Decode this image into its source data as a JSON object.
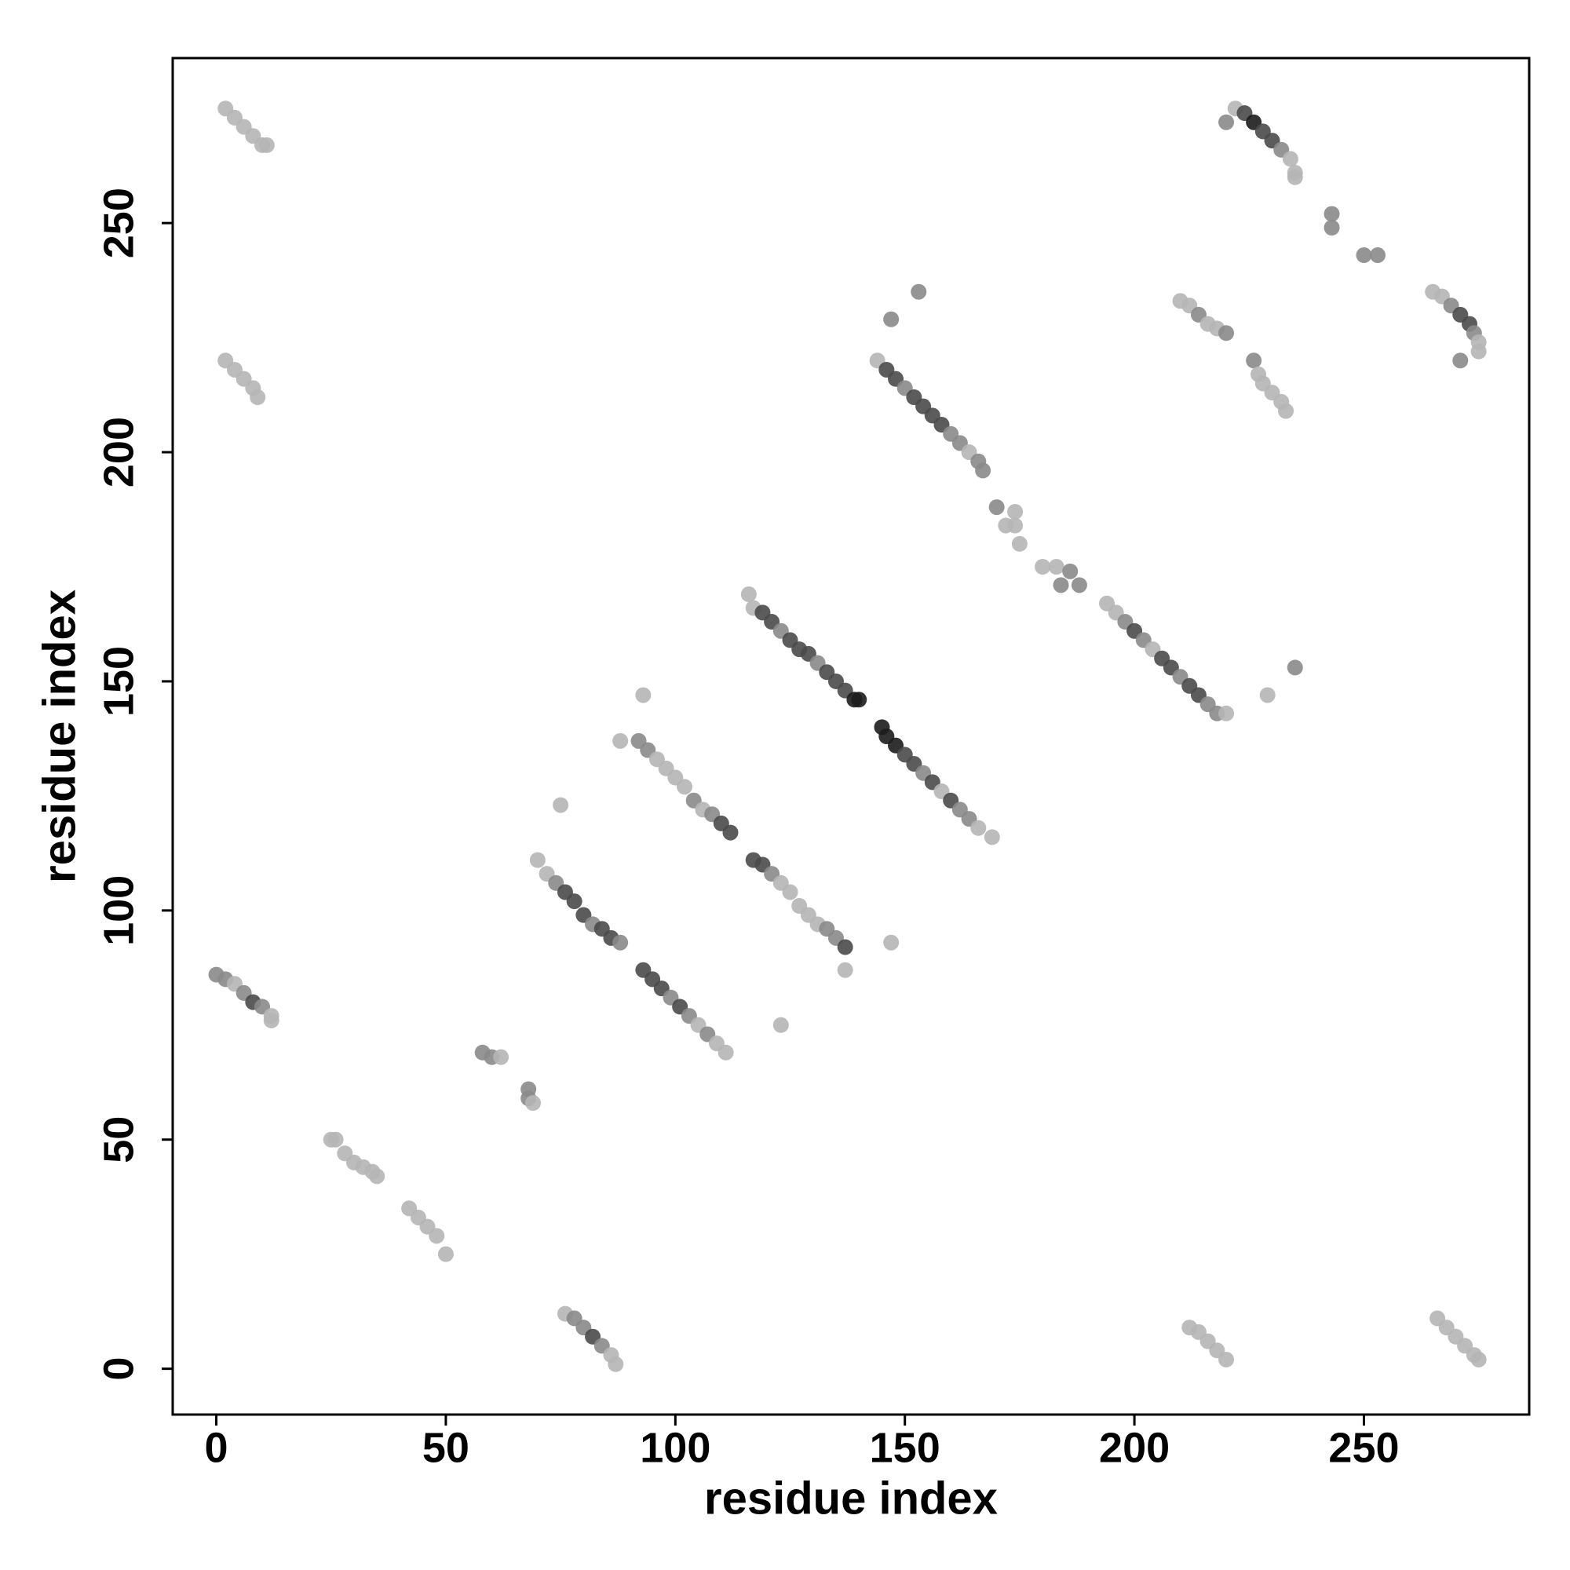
{
  "chart_data": {
    "type": "scatter",
    "x_label": "residue index",
    "y_label": "residue index",
    "xlim": [
      -9.5,
      286
    ],
    "ylim": [
      -10,
      286
    ],
    "xticks": [
      0,
      50,
      100,
      150,
      200,
      250
    ],
    "yticks": [
      0,
      50,
      100,
      150,
      200,
      250
    ],
    "x": [
      2,
      4,
      6,
      8,
      10,
      11,
      2,
      4,
      6,
      8,
      9,
      0,
      2,
      4,
      6,
      8,
      10,
      12,
      12,
      25,
      26,
      28,
      30,
      32,
      34,
      35,
      42,
      44,
      46,
      48,
      50,
      58,
      60,
      62,
      68,
      68,
      69,
      76,
      78,
      80,
      82,
      84,
      86,
      87,
      70,
      72,
      74,
      76,
      78,
      80,
      82,
      84,
      86,
      88,
      75,
      93,
      95,
      97,
      99,
      101,
      103,
      105,
      107,
      109,
      111,
      92,
      94,
      96,
      98,
      100,
      102,
      104,
      106,
      108,
      110,
      112,
      93,
      88,
      117,
      119,
      121,
      123,
      125,
      127,
      129,
      131,
      133,
      135,
      137,
      137,
      123,
      116,
      117,
      119,
      121,
      123,
      125,
      127,
      129,
      131,
      133,
      135,
      137,
      139,
      140,
      145,
      146,
      148,
      150,
      152,
      154,
      156,
      158,
      160,
      162,
      164,
      166,
      169,
      147,
      144,
      146,
      148,
      150,
      152,
      154,
      156,
      158,
      160,
      162,
      164,
      166,
      167,
      147,
      153,
      170,
      172,
      174,
      174,
      175,
      180,
      183,
      184,
      186,
      188,
      194,
      196,
      198,
      200,
      202,
      204,
      206,
      208,
      210,
      212,
      214,
      216,
      218,
      220,
      229,
      235,
      210,
      212,
      214,
      216,
      218,
      220,
      226,
      227,
      228,
      230,
      232,
      233,
      220,
      222,
      224,
      226,
      228,
      230,
      232,
      234,
      235,
      235,
      243,
      243,
      250,
      253,
      265,
      267,
      269,
      271,
      273,
      274,
      275,
      275,
      271,
      212,
      214,
      216,
      218,
      220,
      266,
      268,
      270,
      272,
      274,
      275
    ],
    "y": [
      275,
      273,
      271,
      269,
      267,
      267,
      220,
      218,
      216,
      214,
      212,
      86,
      85,
      84,
      82,
      80,
      79,
      77,
      76,
      50,
      50,
      47,
      45,
      44,
      43,
      42,
      35,
      33,
      31,
      29,
      25,
      69,
      68,
      68,
      61,
      59,
      58,
      12,
      11,
      9,
      7,
      5,
      3,
      1,
      111,
      108,
      106,
      104,
      102,
      99,
      97,
      96,
      94,
      93,
      123,
      87,
      85,
      83,
      81,
      79,
      77,
      75,
      73,
      71,
      69,
      137,
      135,
      133,
      131,
      129,
      127,
      124,
      122,
      121,
      119,
      117,
      147,
      137,
      111,
      110,
      108,
      106,
      104,
      101,
      99,
      97,
      96,
      94,
      92,
      87,
      75,
      169,
      166,
      165,
      163,
      161,
      159,
      157,
      156,
      154,
      152,
      150,
      148,
      146,
      146,
      140,
      138,
      136,
      134,
      132,
      130,
      128,
      126,
      124,
      122,
      120,
      118,
      116,
      93,
      220,
      218,
      216,
      214,
      212,
      210,
      208,
      206,
      204,
      202,
      200,
      198,
      196,
      229,
      235,
      188,
      184,
      187,
      184,
      180,
      175,
      175,
      171,
      174,
      171,
      167,
      165,
      163,
      161,
      159,
      157,
      155,
      153,
      151,
      149,
      147,
      145,
      143,
      143,
      147,
      153,
      233,
      232,
      230,
      228,
      227,
      226,
      220,
      217,
      215,
      213,
      211,
      209,
      272,
      275,
      274,
      272,
      270,
      268,
      266,
      264,
      261,
      260,
      252,
      249,
      243,
      243,
      235,
      234,
      232,
      230,
      228,
      226,
      224,
      222,
      220,
      9,
      8,
      6,
      4,
      2,
      11,
      9,
      7,
      5,
      3,
      2
    ],
    "colors": [
      "#b5b5b5",
      "#b5b5b5",
      "#b5b5b5",
      "#b5b5b5",
      "#b5b5b5",
      "#b5b5b5",
      "#b5b5b5",
      "#b5b5b5",
      "#b5b5b5",
      "#b5b5b5",
      "#b5b5b5",
      "#8a8a8a",
      "#8a8a8a",
      "#b5b5b5",
      "#8a8a8a",
      "#4a4a4a",
      "#8a8a8a",
      "#b5b5b5",
      "#b5b5b5",
      "#b5b5b5",
      "#b5b5b5",
      "#b5b5b5",
      "#b5b5b5",
      "#b5b5b5",
      "#b5b5b5",
      "#b5b5b5",
      "#b5b5b5",
      "#b5b5b5",
      "#b5b5b5",
      "#b5b5b5",
      "#b5b5b5",
      "#8a8a8a",
      "#8a8a8a",
      "#b5b5b5",
      "#8a8a8a",
      "#8a8a8a",
      "#b5b5b5",
      "#b5b5b5",
      "#8a8a8a",
      "#8a8a8a",
      "#4a4a4a",
      "#8a8a8a",
      "#b5b5b5",
      "#b5b5b5",
      "#b5b5b5",
      "#b5b5b5",
      "#8a8a8a",
      "#4a4a4a",
      "#4a4a4a",
      "#4a4a4a",
      "#8a8a8a",
      "#4a4a4a",
      "#4a4a4a",
      "#8a8a8a",
      "#b5b5b5",
      "#4a4a4a",
      "#4a4a4a",
      "#4a4a4a",
      "#8a8a8a",
      "#4a4a4a",
      "#8a8a8a",
      "#b5b5b5",
      "#8a8a8a",
      "#b5b5b5",
      "#b5b5b5",
      "#8a8a8a",
      "#8a8a8a",
      "#b5b5b5",
      "#b5b5b5",
      "#b5b5b5",
      "#b5b5b5",
      "#8a8a8a",
      "#b5b5b5",
      "#8a8a8a",
      "#4a4a4a",
      "#4a4a4a",
      "#b5b5b5",
      "#b5b5b5",
      "#4a4a4a",
      "#4a4a4a",
      "#8a8a8a",
      "#b5b5b5",
      "#b5b5b5",
      "#b5b5b5",
      "#b5b5b5",
      "#b5b5b5",
      "#8a8a8a",
      "#8a8a8a",
      "#4a4a4a",
      "#b5b5b5",
      "#b5b5b5",
      "#b5b5b5",
      "#b5b5b5",
      "#4a4a4a",
      "#4a4a4a",
      "#8a8a8a",
      "#4a4a4a",
      "#4a4a4a",
      "#4a4a4a",
      "#8a8a8a",
      "#4a4a4a",
      "#4a4a4a",
      "#4a4a4a",
      "#1c1c1c",
      "#1c1c1c",
      "#1c1c1c",
      "#1c1c1c",
      "#1c1c1c",
      "#4a4a4a",
      "#4a4a4a",
      "#8a8a8a",
      "#4a4a4a",
      "#b5b5b5",
      "#4a4a4a",
      "#8a8a8a",
      "#8a8a8a",
      "#b5b5b5",
      "#b5b5b5",
      "#b5b5b5",
      "#b5b5b5",
      "#4a4a4a",
      "#4a4a4a",
      "#8a8a8a",
      "#4a4a4a",
      "#4a4a4a",
      "#4a4a4a",
      "#4a4a4a",
      "#8a8a8a",
      "#8a8a8a",
      "#b5b5b5",
      "#8a8a8a",
      "#8a8a8a",
      "#8a8a8a",
      "#8a8a8a",
      "#8a8a8a",
      "#b5b5b5",
      "#b5b5b5",
      "#b5b5b5",
      "#b5b5b5",
      "#b5b5b5",
      "#b5b5b5",
      "#8a8a8a",
      "#8a8a8a",
      "#8a8a8a",
      "#b5b5b5",
      "#b5b5b5",
      "#8a8a8a",
      "#4a4a4a",
      "#8a8a8a",
      "#b5b5b5",
      "#4a4a4a",
      "#4a4a4a",
      "#8a8a8a",
      "#4a4a4a",
      "#4a4a4a",
      "#8a8a8a",
      "#8a8a8a",
      "#b5b5b5",
      "#b5b5b5",
      "#8a8a8a",
      "#b5b5b5",
      "#b5b5b5",
      "#8a8a8a",
      "#b5b5b5",
      "#b5b5b5",
      "#8a8a8a",
      "#8a8a8a",
      "#b5b5b5",
      "#b5b5b5",
      "#b5b5b5",
      "#b5b5b5",
      "#b5b5b5",
      "#8a8a8a",
      "#b5b5b5",
      "#4a4a4a",
      "#1c1c1c",
      "#4a4a4a",
      "#4a4a4a",
      "#8a8a8a",
      "#b5b5b5",
      "#b5b5b5",
      "#b5b5b5",
      "#8a8a8a",
      "#8a8a8a",
      "#8a8a8a",
      "#8a8a8a",
      "#b5b5b5",
      "#b5b5b5",
      "#8a8a8a",
      "#4a4a4a",
      "#4a4a4a",
      "#8a8a8a",
      "#b5b5b5",
      "#b5b5b5",
      "#8a8a8a",
      "#b5b5b5",
      "#b5b5b5",
      "#b5b5b5",
      "#b5b5b5",
      "#b5b5b5",
      "#b5b5b5",
      "#b5b5b5",
      "#b5b5b5",
      "#b5b5b5",
      "#b5b5b5",
      "#b5b5b5"
    ]
  }
}
